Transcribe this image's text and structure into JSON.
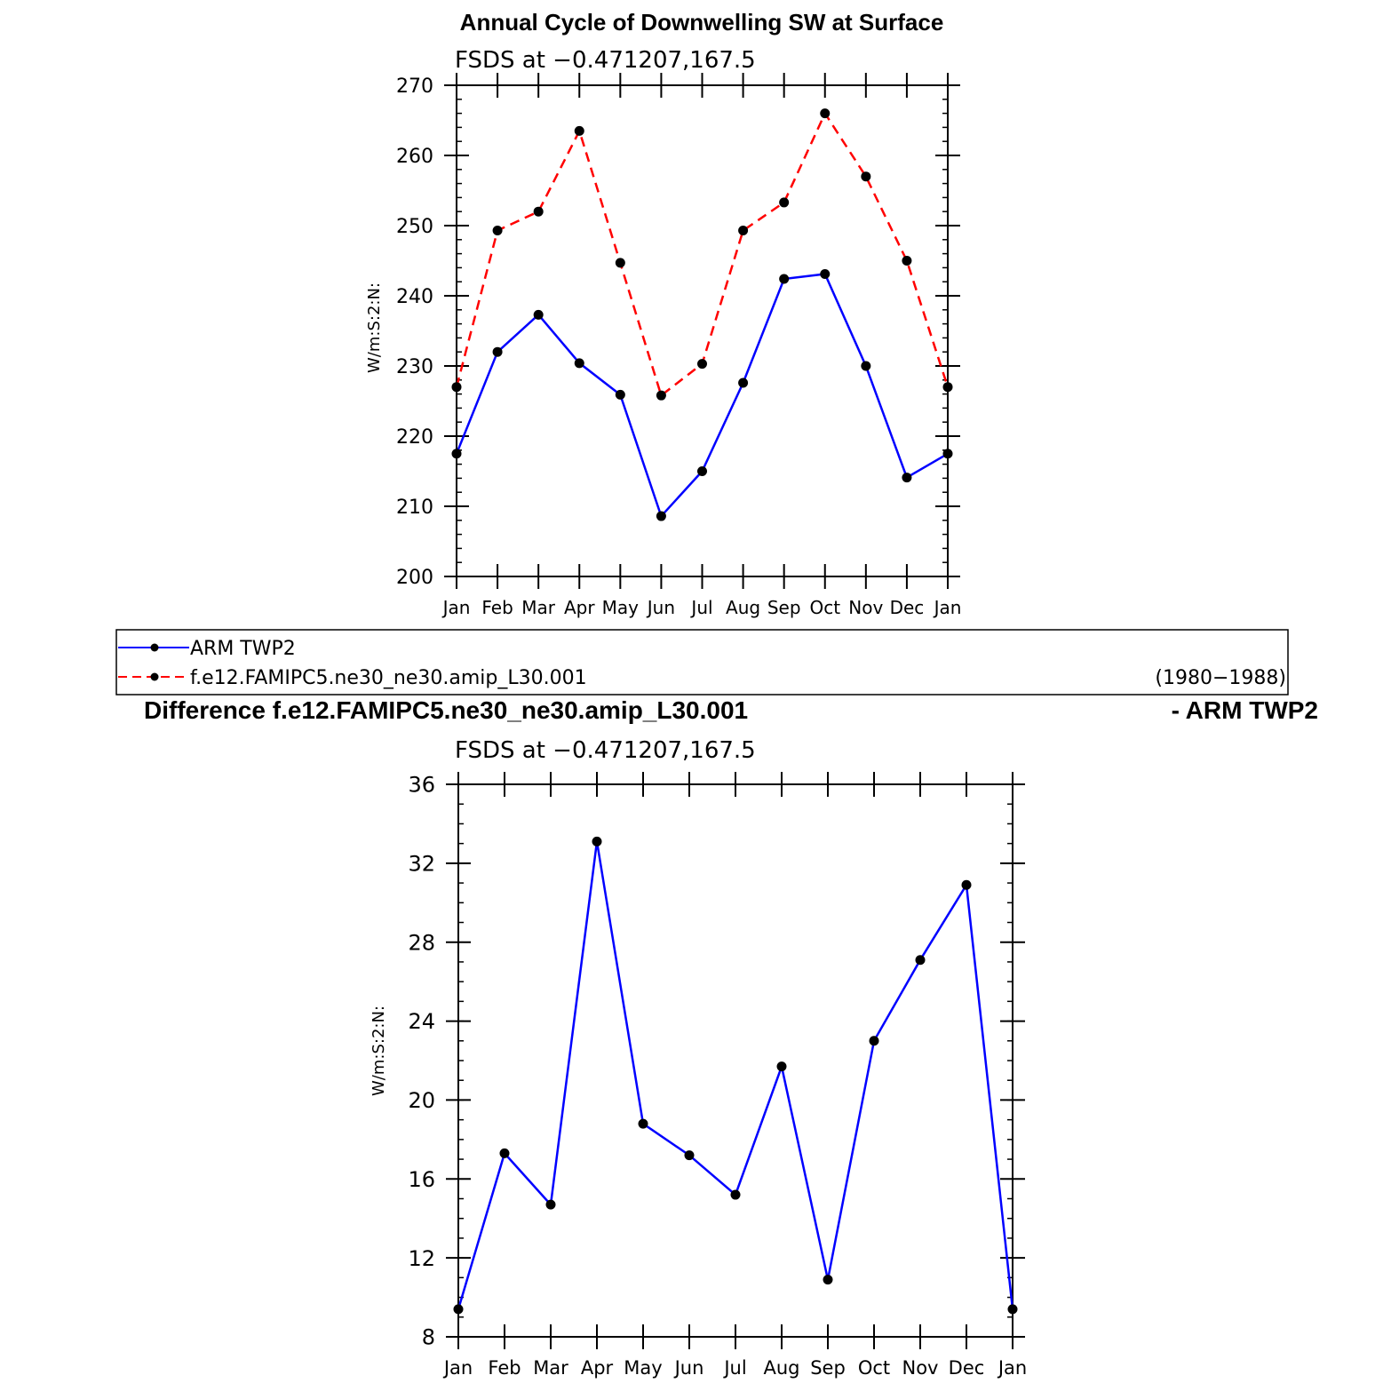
{
  "page": {
    "main_title": "Annual Cycle of Downwelling SW at Surface",
    "diff_title_left": "Difference f.e12.FAMIPC5.ne30_ne30.amip_L30.001",
    "diff_title_right": "- ARM TWP2"
  },
  "legend": {
    "entries": [
      {
        "label": "ARM TWP2",
        "color": "#0000ff",
        "dash": "solid"
      },
      {
        "label": "f.e12.FAMIPC5.ne30_ne30.amip_L30.001",
        "color": "#ff0000",
        "dash": "dashed"
      }
    ],
    "period": "(1980−1988)"
  },
  "chart_data": [
    {
      "type": "line",
      "subtitle": "FSDS at −0.471207,167.5",
      "ylabel": "W/m:S:2:N:",
      "categories": [
        "Jan",
        "Feb",
        "Mar",
        "Apr",
        "May",
        "Jun",
        "Jul",
        "Aug",
        "Sep",
        "Oct",
        "Nov",
        "Dec",
        "Jan"
      ],
      "ylim": [
        200,
        270
      ],
      "yticks": [
        200,
        210,
        220,
        230,
        240,
        250,
        260,
        270
      ],
      "minor_step": 2,
      "series": [
        {
          "name": "ARM TWP2",
          "color": "#0000ff",
          "dash": "solid",
          "values": [
            217.5,
            232,
            237.3,
            230.4,
            225.9,
            208.6,
            215,
            227.6,
            242.4,
            243.1,
            230,
            214.1,
            217.5
          ]
        },
        {
          "name": "f.e12.FAMIPC5.ne30_ne30.amip_L30.001",
          "color": "#ff0000",
          "dash": "dashed",
          "values": [
            227,
            249.3,
            252,
            263.5,
            244.7,
            225.8,
            230.3,
            249.3,
            253.3,
            266,
            257,
            245,
            227
          ]
        }
      ]
    },
    {
      "type": "line",
      "subtitle": "FSDS at −0.471207,167.5",
      "ylabel": "W/m:S:2:N:",
      "categories": [
        "Jan",
        "Feb",
        "Mar",
        "Apr",
        "May",
        "Jun",
        "Jul",
        "Aug",
        "Sep",
        "Oct",
        "Nov",
        "Dec",
        "Jan"
      ],
      "ylim": [
        8,
        36
      ],
      "yticks": [
        8,
        12,
        16,
        20,
        24,
        28,
        32,
        36
      ],
      "minor_step": 1,
      "series": [
        {
          "color": "#0000ff",
          "dash": "solid",
          "values": [
            9.4,
            17.3,
            14.7,
            33.1,
            18.8,
            17.2,
            15.2,
            21.7,
            10.9,
            23,
            27.1,
            30.9,
            9.4
          ]
        }
      ]
    }
  ]
}
